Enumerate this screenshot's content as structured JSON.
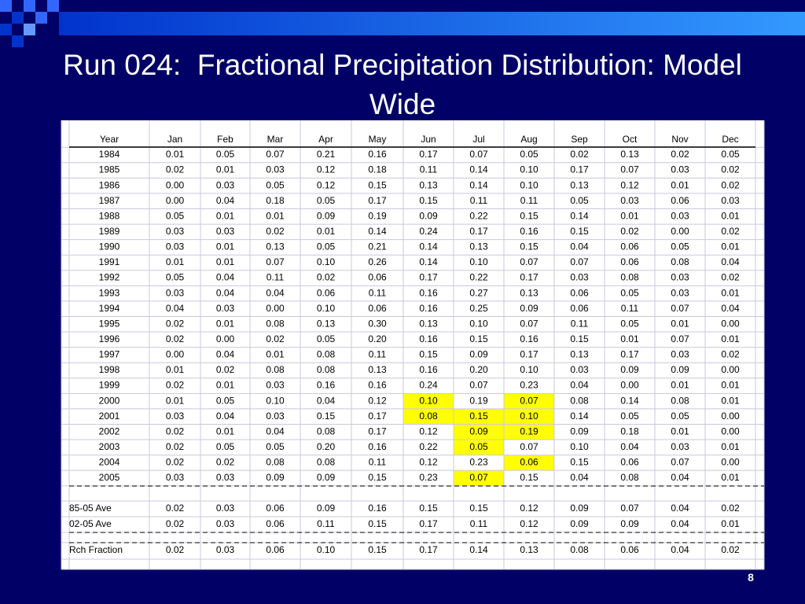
{
  "header": {
    "title": "Run 024:  Fractional Precipitation Distribution: Model Wide"
  },
  "table": {
    "columns": [
      "Year",
      "Jan",
      "Feb",
      "Mar",
      "Apr",
      "May",
      "Jun",
      "Jul",
      "Aug",
      "Sep",
      "Oct",
      "Nov",
      "Dec"
    ],
    "rows": [
      [
        "1984",
        "0.01",
        "0.05",
        "0.07",
        "0.21",
        "0.16",
        "0.17",
        "0.07",
        "0.05",
        "0.02",
        "0.13",
        "0.02",
        "0.05"
      ],
      [
        "1985",
        "0.02",
        "0.01",
        "0.03",
        "0.12",
        "0.18",
        "0.11",
        "0.14",
        "0.10",
        "0.17",
        "0.07",
        "0.03",
        "0.02"
      ],
      [
        "1986",
        "0.00",
        "0.03",
        "0.05",
        "0.12",
        "0.15",
        "0.13",
        "0.14",
        "0.10",
        "0.13",
        "0.12",
        "0.01",
        "0.02"
      ],
      [
        "1987",
        "0.00",
        "0.04",
        "0.18",
        "0.05",
        "0.17",
        "0.15",
        "0.11",
        "0.11",
        "0.05",
        "0.03",
        "0.06",
        "0.03"
      ],
      [
        "1988",
        "0.05",
        "0.01",
        "0.01",
        "0.09",
        "0.19",
        "0.09",
        "0.22",
        "0.15",
        "0.14",
        "0.01",
        "0.03",
        "0.01"
      ],
      [
        "1989",
        "0.03",
        "0.03",
        "0.02",
        "0.01",
        "0.14",
        "0.24",
        "0.17",
        "0.16",
        "0.15",
        "0.02",
        "0.00",
        "0.02"
      ],
      [
        "1990",
        "0.03",
        "0.01",
        "0.13",
        "0.05",
        "0.21",
        "0.14",
        "0.13",
        "0.15",
        "0.04",
        "0.06",
        "0.05",
        "0.01"
      ],
      [
        "1991",
        "0.01",
        "0.01",
        "0.07",
        "0.10",
        "0.26",
        "0.14",
        "0.10",
        "0.07",
        "0.07",
        "0.06",
        "0.08",
        "0.04"
      ],
      [
        "1992",
        "0.05",
        "0.04",
        "0.11",
        "0.02",
        "0.06",
        "0.17",
        "0.22",
        "0.17",
        "0.03",
        "0.08",
        "0.03",
        "0.02"
      ],
      [
        "1993",
        "0.03",
        "0.04",
        "0.04",
        "0.06",
        "0.11",
        "0.16",
        "0.27",
        "0.13",
        "0.06",
        "0.05",
        "0.03",
        "0.01"
      ],
      [
        "1994",
        "0.04",
        "0.03",
        "0.00",
        "0.10",
        "0.06",
        "0.16",
        "0.25",
        "0.09",
        "0.06",
        "0.11",
        "0.07",
        "0.04"
      ],
      [
        "1995",
        "0.02",
        "0.01",
        "0.08",
        "0.13",
        "0.30",
        "0.13",
        "0.10",
        "0.07",
        "0.11",
        "0.05",
        "0.01",
        "0.00"
      ],
      [
        "1996",
        "0.02",
        "0.00",
        "0.02",
        "0.05",
        "0.20",
        "0.16",
        "0.15",
        "0.16",
        "0.15",
        "0.01",
        "0.07",
        "0.01"
      ],
      [
        "1997",
        "0.00",
        "0.04",
        "0.01",
        "0.08",
        "0.11",
        "0.15",
        "0.09",
        "0.17",
        "0.13",
        "0.17",
        "0.03",
        "0.02"
      ],
      [
        "1998",
        "0.01",
        "0.02",
        "0.08",
        "0.08",
        "0.13",
        "0.16",
        "0.20",
        "0.10",
        "0.03",
        "0.09",
        "0.09",
        "0.00"
      ],
      [
        "1999",
        "0.02",
        "0.01",
        "0.03",
        "0.16",
        "0.16",
        "0.24",
        "0.07",
        "0.23",
        "0.04",
        "0.00",
        "0.01",
        "0.01"
      ],
      [
        "2000",
        "0.01",
        "0.05",
        "0.10",
        "0.04",
        "0.12",
        "0.10",
        "0.19",
        "0.07",
        "0.08",
        "0.14",
        "0.08",
        "0.01"
      ],
      [
        "2001",
        "0.03",
        "0.04",
        "0.03",
        "0.15",
        "0.17",
        "0.08",
        "0.15",
        "0.10",
        "0.14",
        "0.05",
        "0.05",
        "0.00"
      ],
      [
        "2002",
        "0.02",
        "0.01",
        "0.04",
        "0.08",
        "0.17",
        "0.12",
        "0.09",
        "0.19",
        "0.09",
        "0.18",
        "0.01",
        "0.00"
      ],
      [
        "2003",
        "0.02",
        "0.05",
        "0.05",
        "0.20",
        "0.16",
        "0.22",
        "0.05",
        "0.07",
        "0.10",
        "0.04",
        "0.03",
        "0.01"
      ],
      [
        "2004",
        "0.02",
        "0.02",
        "0.08",
        "0.08",
        "0.11",
        "0.12",
        "0.23",
        "0.06",
        "0.15",
        "0.06",
        "0.07",
        "0.00"
      ],
      [
        "2005",
        "0.03",
        "0.03",
        "0.09",
        "0.09",
        "0.15",
        "0.23",
        "0.07",
        "0.15",
        "0.04",
        "0.08",
        "0.04",
        "0.01"
      ]
    ],
    "summary_rows": [
      [
        "85-05 Ave",
        "0.02",
        "0.03",
        "0.06",
        "0.09",
        "0.16",
        "0.15",
        "0.15",
        "0.12",
        "0.09",
        "0.07",
        "0.04",
        "0.02"
      ],
      [
        "02-05 Ave",
        "0.02",
        "0.03",
        "0.06",
        "0.11",
        "0.15",
        "0.17",
        "0.11",
        "0.12",
        "0.09",
        "0.09",
        "0.04",
        "0.01"
      ],
      [
        "Rch Fraction",
        "0.02",
        "0.03",
        "0.06",
        "0.10",
        "0.15",
        "0.17",
        "0.14",
        "0.13",
        "0.08",
        "0.06",
        "0.04",
        "0.02"
      ]
    ],
    "highlight_color": "#ffff00",
    "highlighted_cells": [
      [
        16,
        6
      ],
      [
        16,
        8
      ],
      [
        17,
        6
      ],
      [
        17,
        7
      ],
      [
        17,
        8
      ],
      [
        18,
        7
      ],
      [
        18,
        8
      ],
      [
        19,
        7
      ],
      [
        20,
        8
      ],
      [
        21,
        7
      ]
    ]
  },
  "footer": {
    "page_number": "8"
  }
}
